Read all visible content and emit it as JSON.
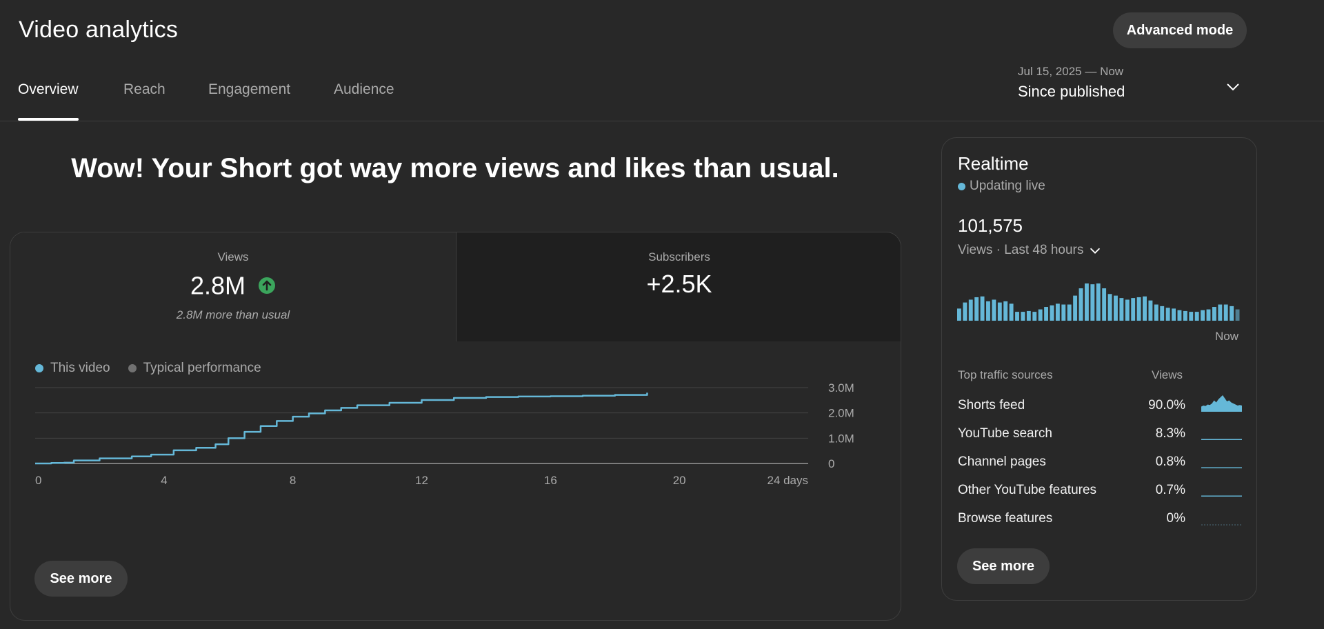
{
  "header": {
    "title": "Video analytics",
    "advanced_mode_label": "Advanced mode",
    "date_range": {
      "sub": "Jul 15, 2025 — Now",
      "main": "Since published"
    }
  },
  "tabs": [
    {
      "label": "Overview",
      "active": true
    },
    {
      "label": "Reach",
      "active": false
    },
    {
      "label": "Engagement",
      "active": false
    },
    {
      "label": "Audience",
      "active": false
    }
  ],
  "headline": "Wow! Your Short got way more views and likes than usual.",
  "metrics": {
    "views": {
      "label": "Views",
      "value": "2.8M",
      "note": "2.8M more than usual",
      "trend": "up"
    },
    "subscribers": {
      "label": "Subscribers",
      "value": "+2.5K"
    }
  },
  "legend": [
    {
      "label": "This video",
      "color": "#65b8d8"
    },
    {
      "label": "Typical performance",
      "color": "#717171"
    }
  ],
  "chart_data": {
    "type": "line",
    "x_unit": "days",
    "xlim": [
      0,
      24
    ],
    "ylim": [
      0,
      3000000
    ],
    "x_ticks": [
      {
        "value": 0,
        "label": "0"
      },
      {
        "value": 4,
        "label": "4"
      },
      {
        "value": 8,
        "label": "8"
      },
      {
        "value": 12,
        "label": "12"
      },
      {
        "value": 16,
        "label": "16"
      },
      {
        "value": 20,
        "label": "20"
      },
      {
        "value": 24,
        "label": "24 days"
      }
    ],
    "y_ticks": [
      {
        "value": 0,
        "label": "0"
      },
      {
        "value": 1000000,
        "label": "1.0M"
      },
      {
        "value": 2000000,
        "label": "2.0M"
      },
      {
        "value": 3000000,
        "label": "3.0M"
      }
    ],
    "grid": true,
    "series": [
      {
        "name": "This video",
        "color": "#65b8d8",
        "x": [
          0,
          0.5,
          0.9,
          1.2,
          2,
          3,
          3.6,
          4.3,
          5,
          5.6,
          6,
          6.5,
          7,
          7.5,
          8,
          8.5,
          9,
          9.5,
          10,
          11,
          12,
          13,
          14,
          15,
          16,
          17,
          18,
          19
        ],
        "y": [
          0,
          20000,
          30000,
          120000,
          200000,
          280000,
          350000,
          520000,
          620000,
          760000,
          1000000,
          1250000,
          1480000,
          1680000,
          1850000,
          1980000,
          2100000,
          2200000,
          2300000,
          2400000,
          2510000,
          2590000,
          2630000,
          2650000,
          2660000,
          2680000,
          2710000,
          2800000
        ]
      }
    ]
  },
  "main_see_more": "See more",
  "realtime": {
    "title": "Realtime",
    "status": "Updating live",
    "count": "101,575",
    "period": "Views · Last 48 hours",
    "now_label": "Now",
    "bar_color": "#65b8d8",
    "bars": [
      30,
      45,
      52,
      58,
      60,
      48,
      52,
      45,
      48,
      42,
      22,
      22,
      24,
      22,
      28,
      34,
      38,
      42,
      40,
      40,
      62,
      80,
      92,
      90,
      92,
      80,
      66,
      62,
      56,
      52,
      56,
      58,
      60,
      50,
      40,
      36,
      32,
      30,
      26,
      24,
      22,
      22,
      26,
      28,
      34,
      40,
      40,
      36,
      28
    ],
    "traffic": {
      "head_label": "Top traffic sources",
      "head_value": "Views",
      "rows": [
        {
          "name": "Shorts feed",
          "pct": "90.0%",
          "spark": [
            10,
            12,
            11,
            14,
            13,
            16,
            22,
            18,
            24,
            28,
            32,
            26,
            20,
            22,
            18,
            16,
            14,
            12,
            13,
            12
          ]
        },
        {
          "name": "YouTube search",
          "pct": "8.3%",
          "spark": [
            1,
            1,
            1,
            1,
            1,
            1,
            1,
            1,
            1,
            1,
            1,
            1,
            1,
            1,
            1,
            1,
            1,
            1,
            1,
            1
          ]
        },
        {
          "name": "Channel pages",
          "pct": "0.8%",
          "spark": [
            1,
            1,
            1,
            1,
            1,
            1,
            1,
            1,
            1,
            1,
            1,
            1,
            1,
            1,
            1,
            1,
            1,
            1,
            1,
            1
          ]
        },
        {
          "name": "Other YouTube features",
          "pct": "0.7%",
          "spark": [
            1,
            1,
            1,
            1,
            1,
            1,
            1,
            1,
            1,
            1,
            1,
            1,
            1,
            1,
            1,
            1,
            1,
            1,
            1,
            1
          ]
        },
        {
          "name": "Browse features",
          "pct": "0%",
          "spark": [
            0,
            0,
            0,
            0,
            0,
            0,
            0,
            0,
            0,
            0,
            0,
            0,
            0,
            0,
            0,
            0,
            0,
            0,
            0,
            0
          ]
        }
      ]
    },
    "see_more": "See more"
  },
  "colors": {
    "up_trend": "#3ba55c",
    "accent": "#65b8d8"
  },
  "icons": {
    "date_chevron": "chevron-down-icon",
    "period_chevron": "chevron-down-icon",
    "trend": "arrow-up-circle-icon"
  }
}
